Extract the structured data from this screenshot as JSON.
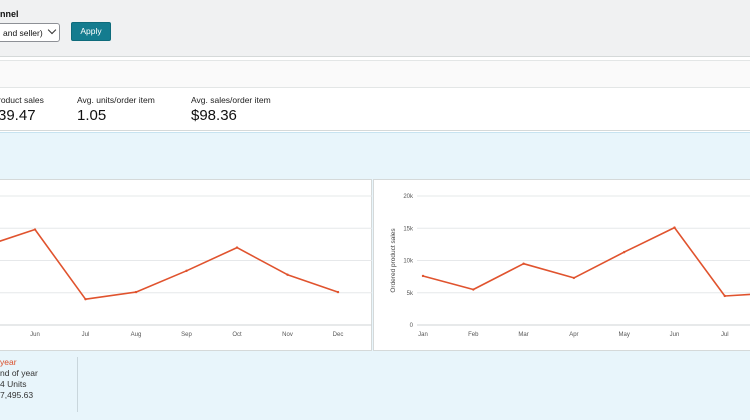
{
  "filter": {
    "label": "nnel",
    "select_value": "and seller)",
    "apply_label": "Apply"
  },
  "metrics": [
    {
      "label": "roduct sales",
      "value": "39.47"
    },
    {
      "label": "Avg. units/order item",
      "value": "1.05"
    },
    {
      "label": "Avg. sales/order item",
      "value": "$98.36"
    }
  ],
  "legend": {
    "title": "year",
    "line1": "nd of year",
    "line2": "4 Units",
    "line3": "7,495.63"
  },
  "colors": {
    "line": "#e0532e",
    "accent": "#147c8f"
  },
  "chart_data": [
    {
      "type": "line",
      "categories": [
        "Jun",
        "Jul",
        "Aug",
        "Sep",
        "Oct",
        "Nov",
        "Dec"
      ],
      "values": [
        14800,
        4000,
        5100,
        8400,
        12000,
        7800,
        5100
      ],
      "lead_value": 12200,
      "ylim": [
        0,
        20000
      ]
    },
    {
      "type": "line",
      "categories": [
        "Jan",
        "Feb",
        "Mar",
        "Apr",
        "May",
        "Jun",
        "Jul"
      ],
      "values": [
        7600,
        5500,
        9500,
        7300,
        11300,
        15100,
        4500
      ],
      "tail_value": 5000,
      "y_ticks": [
        "0",
        "5k",
        "10k",
        "15k",
        "20k"
      ],
      "ylabel": "Ordered product sales",
      "ylim": [
        0,
        20000
      ]
    }
  ]
}
